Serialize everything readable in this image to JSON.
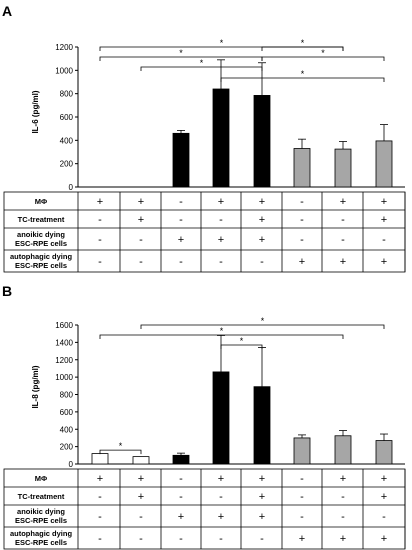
{
  "chart_data": [
    {
      "type": "bar",
      "panel": "A",
      "ylabel": "IL-6 (pg/ml)",
      "ylim": [
        0,
        1200
      ],
      "yticks": [
        0,
        200,
        400,
        600,
        800,
        1000,
        1200
      ],
      "values": [
        0,
        0,
        460,
        840,
        785,
        330,
        325,
        395
      ],
      "errors": [
        0,
        0,
        25,
        250,
        280,
        80,
        65,
        140
      ],
      "colors": [
        "#ffffff",
        "#ffffff",
        "#000000",
        "#000000",
        "#000000",
        "#a6a6a6",
        "#a6a6a6",
        "#a6a6a6"
      ],
      "significance": [
        {
          "from": 0,
          "to": 6,
          "label": "*"
        },
        {
          "from": 0,
          "to": 4,
          "label": "*"
        },
        {
          "from": 1,
          "to": 4,
          "label": "*"
        },
        {
          "from": 3,
          "to": 7,
          "label": "*"
        },
        {
          "from": 4,
          "to": 6,
          "label": "*"
        },
        {
          "from": 4,
          "to": 7,
          "label": "*"
        }
      ],
      "table": {
        "rows": [
          {
            "label": [
              "MΦ"
            ],
            "signs": [
              "+",
              "+",
              "-",
              "+",
              "+",
              "-",
              "+",
              "+"
            ]
          },
          {
            "label": [
              "TC-treatment"
            ],
            "signs": [
              "-",
              "+",
              "-",
              "-",
              "+",
              "-",
              "-",
              "+"
            ]
          },
          {
            "label": [
              "anoikic  dying",
              "ESC-RPE cells"
            ],
            "signs": [
              "-",
              "-",
              "+",
              "+",
              "+",
              "-",
              "-",
              "-"
            ]
          },
          {
            "label": [
              "autophagic dying",
              "ESC-RPE cells"
            ],
            "signs": [
              "-",
              "-",
              "-",
              "-",
              "-",
              "+",
              "+",
              "+"
            ]
          }
        ]
      }
    },
    {
      "type": "bar",
      "panel": "B",
      "ylabel": "IL-8 (pg/ml)",
      "ylim": [
        0,
        1600
      ],
      "yticks": [
        0,
        200,
        400,
        600,
        800,
        1000,
        1200,
        1400,
        1600
      ],
      "values": [
        120,
        85,
        100,
        1060,
        890,
        300,
        325,
        270
      ],
      "errors": [
        0,
        0,
        25,
        420,
        450,
        35,
        60,
        75
      ],
      "colors": [
        "#ffffff",
        "#ffffff",
        "#000000",
        "#000000",
        "#000000",
        "#a6a6a6",
        "#a6a6a6",
        "#a6a6a6"
      ],
      "significance": [
        {
          "from": 1,
          "to": 7,
          "label": "*"
        },
        {
          "from": 0,
          "to": 6,
          "label": "*"
        },
        {
          "from": 3,
          "to": 4,
          "label": "*"
        },
        {
          "from": 0,
          "to": 1,
          "label": "*"
        }
      ],
      "table": {
        "rows": [
          {
            "label": [
              "MΦ"
            ],
            "signs": [
              "+",
              "+",
              "-",
              "+",
              "+",
              "-",
              "+",
              "+"
            ]
          },
          {
            "label": [
              "TC-treatment"
            ],
            "signs": [
              "-",
              "+",
              "-",
              "-",
              "+",
              "-",
              "-",
              "+"
            ]
          },
          {
            "label": [
              "anoikic  dying",
              "ESC-RPE cells"
            ],
            "signs": [
              "-",
              "-",
              "+",
              "+",
              "+",
              "-",
              "-",
              "-"
            ]
          },
          {
            "label": [
              "autophagic dying",
              "ESC-RPE cells"
            ],
            "signs": [
              "-",
              "-",
              "-",
              "-",
              "-",
              "+",
              "+",
              "+"
            ]
          }
        ]
      }
    }
  ]
}
